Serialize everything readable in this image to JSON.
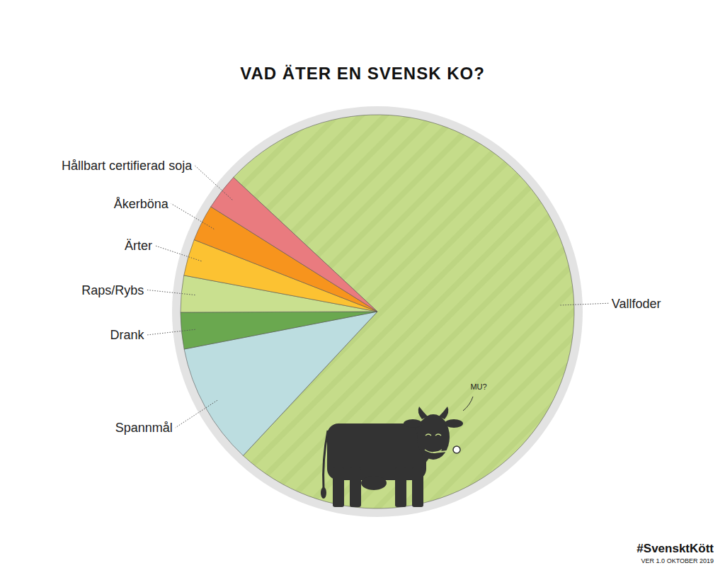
{
  "chart_data": {
    "type": "pie",
    "title": "VAD ÄTER EN SVENSK KO?",
    "categories": [
      "Vallfoder",
      "Spannmål",
      "Drank",
      "Raps/Rybs",
      "Ärter",
      "Åkerböna",
      "Hållbart certifierad soja"
    ],
    "values": [
      75,
      10,
      3,
      3,
      3,
      3,
      3
    ],
    "colors": [
      "#c5dc8a",
      "#bcdde0",
      "#6aa84f",
      "#c9e08f",
      "#fcc232",
      "#f7941d",
      "#e97b7f"
    ],
    "data_labels": false,
    "annotations": [
      "MU?"
    ],
    "caption": "#SvensktKött",
    "footnote": "VER 1.0 OKTOBER 2019"
  }
}
